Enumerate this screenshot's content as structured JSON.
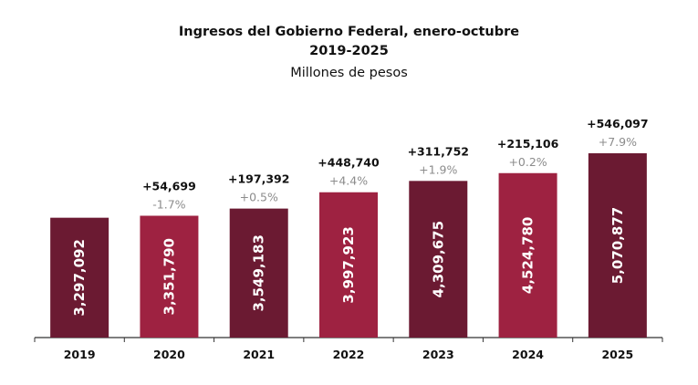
{
  "chart_data": {
    "type": "bar",
    "title": "Ingresos del Gobierno Federal, enero-octubre",
    "subtitle": "2019-2025",
    "units": "Millones de pesos",
    "xlabel": "",
    "ylabel": "",
    "ylim": [
      0,
      5300000
    ],
    "grid": false,
    "categories": [
      "2019",
      "2020",
      "2021",
      "2022",
      "2023",
      "2024",
      "2025"
    ],
    "values": [
      3297092,
      3351790,
      3549183,
      3997923,
      4309675,
      4524780,
      5070877
    ],
    "value_labels": [
      "3,297,092",
      "3,351,790",
      "3,549,183",
      "3,997,923",
      "4,309,675",
      "4,524,780",
      "5,070,877"
    ],
    "change_labels": [
      "",
      "+54,699",
      "+197,392",
      "+448,740",
      "+311,752",
      "+215,106",
      "+546,097"
    ],
    "pct_labels": [
      "",
      "-1.7%",
      "+0.5%",
      "+4.4%",
      "+1.9%",
      "+0.2%",
      "+7.9%"
    ],
    "colors": [
      "#6b1a32",
      "#9e2241",
      "#6b1a32",
      "#9e2241",
      "#6b1a32",
      "#9e2241",
      "#6b1a32"
    ],
    "pct_color": "#8c8c8c"
  }
}
